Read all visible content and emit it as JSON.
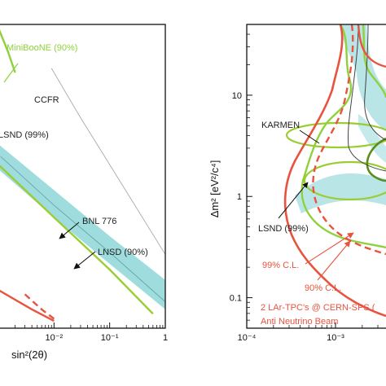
{
  "chart_data": [
    {
      "type": "line",
      "panel": "left",
      "xscale": "log",
      "yscale": "log",
      "xlim": [
        0.001,
        1
      ],
      "ylim": [
        0.03,
        60
      ],
      "xlabel": "sin²(2θ)",
      "ylabel": "",
      "xticks": [
        {
          "value": 0.01,
          "label": "10⁻²"
        },
        {
          "value": 0.1,
          "label": "10⁻¹"
        },
        {
          "value": 1,
          "label": "1"
        }
      ],
      "series": [
        {
          "name": "MiniBooNE (90%)",
          "color": "#8fd13b",
          "points": [
            [
              0.001,
              55
            ],
            [
              0.0015,
              30
            ],
            [
              0.002,
              18
            ]
          ]
        },
        {
          "name": "CCFR",
          "color": "#aaaaaa",
          "points": [
            [
              0.009,
              20
            ],
            [
              0.03,
              5.8
            ],
            [
              0.1,
              1.8
            ],
            [
              1,
              0.19
            ]
          ]
        },
        {
          "name": "LSND (99%)",
          "points": []
        },
        {
          "name": "BNL 776",
          "color": "#222222",
          "points": [
            [
              0.0011,
              2.2
            ],
            [
              0.01,
              0.65
            ],
            [
              0.1,
              0.2
            ],
            [
              1,
              0.058
            ]
          ]
        },
        {
          "name": "LNSD (90%)",
          "color": "#7fd0d3",
          "band": true,
          "upper": [
            [
              0.001,
              3.0
            ],
            [
              0.01,
              0.95
            ],
            [
              0.1,
              0.3
            ],
            [
              1,
              0.1
            ]
          ],
          "lower": [
            [
              0.001,
              1.6
            ],
            [
              0.01,
              0.48
            ],
            [
              0.1,
              0.15
            ],
            [
              1,
              0.048
            ]
          ]
        },
        {
          "name": "",
          "color": "#9acd32",
          "points": [
            [
              0.001,
              1.8
            ],
            [
              0.01,
              0.48
            ],
            [
              0.1,
              0.13
            ],
            [
              0.6,
              0.043
            ]
          ]
        },
        {
          "name": "",
          "color": "#e8533f",
          "points": [
            [
              0.001,
              0.078
            ],
            [
              0.004,
              0.048
            ],
            [
              0.01,
              0.036
            ]
          ]
        },
        {
          "name": "",
          "color": "#e8533f",
          "dashed": true,
          "points": [
            [
              0.003,
              0.07
            ],
            [
              0.006,
              0.048
            ],
            [
              0.01,
              0.038
            ]
          ]
        }
      ]
    },
    {
      "type": "line",
      "panel": "right",
      "xscale": "log",
      "yscale": "log",
      "xlim": [
        0.0001,
        0.01
      ],
      "ylim": [
        0.05,
        50
      ],
      "xlabel": "",
      "ylabel": "Δm² [eV²/c⁴]",
      "xticks": [
        {
          "value": 0.0001,
          "label": "10⁻⁴"
        },
        {
          "value": 0.001,
          "label": "10⁻³"
        }
      ],
      "yticks": [
        {
          "value": 0.1,
          "label": "0.1"
        },
        {
          "value": 1,
          "label": "1"
        },
        {
          "value": 10,
          "label": "10"
        }
      ],
      "series": [
        {
          "name": "KARMEN",
          "color": "#444444"
        },
        {
          "name": "LSND (99%)",
          "color": "#8fd13b"
        },
        {
          "name": "99% C.L.",
          "color": "#e8533f",
          "dashed": true
        },
        {
          "name": "90% C.L.",
          "color": "#e8533f"
        }
      ],
      "annotations": [
        "2 LAr-TPC's @ CERN-SPS (",
        "Anti Neutrino Beam"
      ]
    }
  ]
}
